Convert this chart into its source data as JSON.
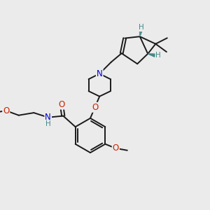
{
  "background_color": "#ebebeb",
  "bond_color": "#1a1a1a",
  "bond_width": 1.4,
  "atom_colors": {
    "O": "#cc2200",
    "N": "#0000cc",
    "H": "#448888",
    "C": "#1a1a1a"
  }
}
